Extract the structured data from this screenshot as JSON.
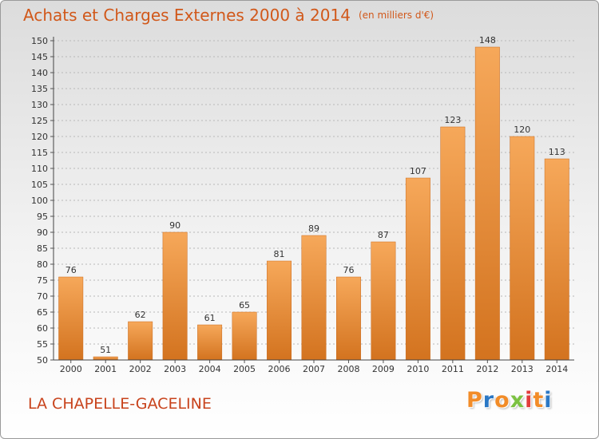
{
  "header": {
    "title": "Achats et Charges Externes 2000 à 2014",
    "unit": "(en milliers d'€)"
  },
  "footer": {
    "place": "LA CHAPELLE-GACELINE",
    "brand": "Proxiti"
  },
  "colors": {
    "title": "#d1581a",
    "bar_light": "#f6a85a",
    "bar_dark": "#d3731f",
    "place": "#c8431c",
    "brand_letters": [
      "#f28c28",
      "#2b78c5",
      "#f28c28",
      "#7cc242",
      "#e23c3c",
      "#f28c28",
      "#2b78c5"
    ]
  },
  "chart_data": {
    "type": "bar",
    "categories": [
      "2000",
      "2001",
      "2002",
      "2003",
      "2004",
      "2005",
      "2006",
      "2007",
      "2008",
      "2009",
      "2010",
      "2011",
      "2012",
      "2013",
      "2014"
    ],
    "values": [
      76,
      51,
      62,
      90,
      61,
      65,
      81,
      89,
      76,
      87,
      107,
      123,
      148,
      120,
      113
    ],
    "data_labels": [
      "76",
      "51",
      "62",
      "90",
      "61",
      "65",
      "81",
      "89",
      "76",
      "87",
      "107",
      "123",
      "148",
      "120",
      "113"
    ],
    "title": "Achats et Charges Externes 2000 à 2014",
    "xlabel": "",
    "ylabel": "",
    "ylim": [
      50,
      150
    ],
    "yticks": [
      50,
      55,
      60,
      65,
      70,
      75,
      80,
      85,
      90,
      95,
      100,
      105,
      110,
      115,
      120,
      125,
      130,
      135,
      140,
      145,
      150
    ],
    "grid": "horizontal dashed",
    "legend": "none"
  }
}
